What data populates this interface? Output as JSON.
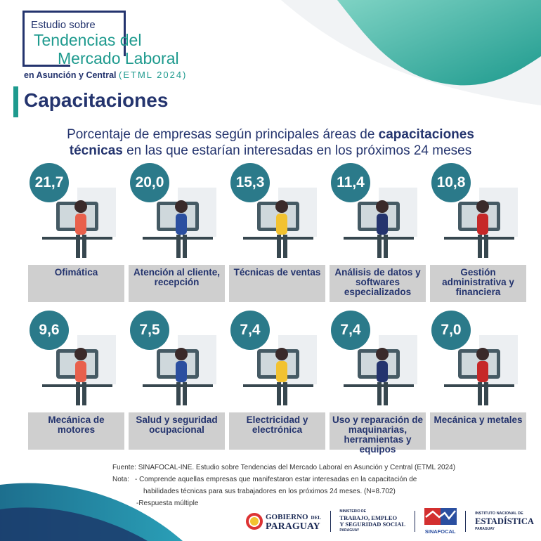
{
  "header": {
    "line1": "Estudio sobre",
    "line2": "Tendencias del",
    "line3": "Mercado Laboral",
    "line4": "en Asunción y Central",
    "line4_code": "(ETML 2024)"
  },
  "section_title": "Capacitaciones",
  "subtitle": {
    "part1": "Porcentaje de empresas según principales áreas de",
    "bold1": "capacitaciones",
    "bold2": "técnicas",
    "part2": "en las que estarían interesadas en los próximos 24 meses"
  },
  "items": [
    {
      "value": "21,7",
      "label": "Ofimática",
      "icon": "office-worker-illustration"
    },
    {
      "value": "20,0",
      "label": "Atención al cliente, recepción",
      "icon": "customer-service-illustration"
    },
    {
      "value": "15,3",
      "label": "Técnicas de ventas",
      "icon": "sales-illustration"
    },
    {
      "value": "11,4",
      "label": "Análisis de datos y softwares especializados",
      "icon": "data-analysis-illustration"
    },
    {
      "value": "10,8",
      "label": "Gestión administrativa y financiera",
      "icon": "finance-illustration"
    },
    {
      "value": "9,6",
      "label": "Mecánica de motores",
      "icon": "car-mechanic-illustration"
    },
    {
      "value": "7,5",
      "label": "Salud y seguridad ocupacional",
      "icon": "health-workers-illustration"
    },
    {
      "value": "7,4",
      "label": "Electricidad y electrónica",
      "icon": "robot-illustration"
    },
    {
      "value": "7,4",
      "label": "Uso y reparación de maquinarias, herramientas y equipos",
      "icon": "machinery-illustration"
    },
    {
      "value": "7,0",
      "label": "Mecánica y metales",
      "icon": "metalwork-illustration"
    }
  ],
  "footer": {
    "source": "Fuente: SINAFOCAL-INE. Estudio sobre Tendencias del Mercado Laboral en Asunción y Central (ETML 2024)",
    "note_label": "Nota:",
    "note1": "- Comprende aquellas empresas que manifestaron estar interesadas en la capacitación de",
    "note1b": "habilidades técnicas para sus trabajadores en los próximos 24 meses. (N=8.702)",
    "note2": "-Respuesta múltiple"
  },
  "logos": {
    "gob1": "GOBIERNO",
    "gob_del": "DEL",
    "gob2": "PARAGUAY",
    "mtess_top": "MINISTERIO DE",
    "mtess1": "TRABAJO, EMPLEO",
    "mtess2": "Y SEGURIDAD SOCIAL",
    "mtess_bot": "PARAGUAY",
    "sinafocal": "SINAFOCAL",
    "ine_top": "INSTITUTO NACIONAL DE",
    "ine": "ESTADÍSTICA",
    "ine_bot": "PARAGUAY"
  },
  "colors": {
    "navy": "#24346e",
    "teal": "#1e9a8e",
    "circle": "#2b7a8a",
    "label_bg": "#cfcfcf"
  }
}
